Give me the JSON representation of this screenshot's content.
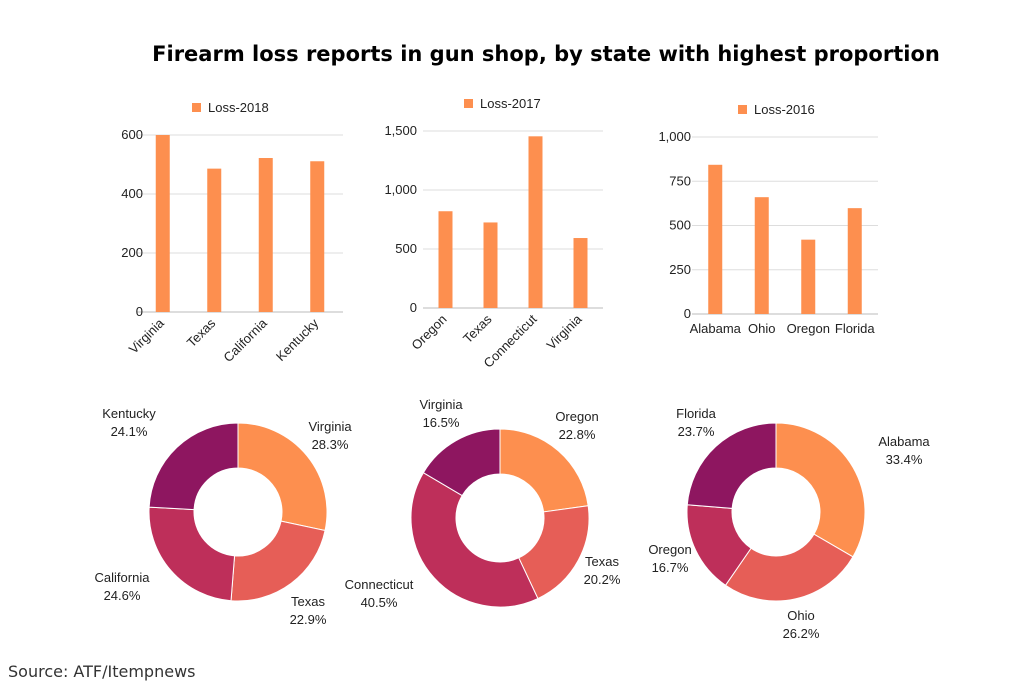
{
  "title": "Firearm loss reports in gun shop, by state with highest proportion",
  "source": "Source: ATF/Itempnews",
  "colors": {
    "bar": "#fd8f4f",
    "grid": "#dddddd",
    "donut": {
      "orange": "#fd8f4f",
      "coral": "#e65e57",
      "crimson": "#be2f5a",
      "purple": "#8e1660"
    }
  },
  "chart_data": [
    {
      "type": "bar",
      "legend": "Loss-2018",
      "categories": [
        "Virginia",
        "Texas",
        "California",
        "Kentucky"
      ],
      "values": [
        600,
        486,
        522,
        511
      ],
      "ylim": [
        0,
        600
      ],
      "yticks": [
        0,
        200,
        400,
        600
      ],
      "ytick_labels": [
        "0",
        "200",
        "400",
        "600"
      ],
      "rotate_labels": true
    },
    {
      "type": "bar",
      "legend": "Loss-2017",
      "categories": [
        "Oregon",
        "Texas",
        "Connecticut",
        "Virginia"
      ],
      "values": [
        820,
        725,
        1455,
        593
      ],
      "ylim": [
        0,
        1500
      ],
      "yticks": [
        0,
        500,
        1000,
        1500
      ],
      "ytick_labels": [
        "0",
        "500",
        "1,000",
        "1,500"
      ],
      "rotate_labels": true
    },
    {
      "type": "bar",
      "legend": "Loss-2016",
      "categories": [
        "Alabama",
        "Ohio",
        "Oregon",
        "Florida"
      ],
      "values": [
        843,
        660,
        420,
        598
      ],
      "ylim": [
        0,
        1000
      ],
      "yticks": [
        0,
        250,
        500,
        750,
        1000
      ],
      "ytick_labels": [
        "0",
        "250",
        "500",
        "750",
        "1,000"
      ],
      "rotate_labels": false
    },
    {
      "type": "pie",
      "slices": [
        {
          "label": "Virginia",
          "value": 28.3,
          "pct": "28.3%",
          "color": "orange"
        },
        {
          "label": "Texas",
          "value": 22.9,
          "pct": "22.9%",
          "color": "coral"
        },
        {
          "label": "California",
          "value": 24.6,
          "pct": "24.6%",
          "color": "crimson"
        },
        {
          "label": "Kentucky",
          "value": 24.1,
          "pct": "24.1%",
          "color": "purple"
        }
      ]
    },
    {
      "type": "pie",
      "slices": [
        {
          "label": "Oregon",
          "value": 22.8,
          "pct": "22.8%",
          "color": "orange"
        },
        {
          "label": "Texas",
          "value": 20.2,
          "pct": "20.2%",
          "color": "coral"
        },
        {
          "label": "Connecticut",
          "value": 40.5,
          "pct": "40.5%",
          "color": "crimson"
        },
        {
          "label": "Virginia",
          "value": 16.5,
          "pct": "16.5%",
          "color": "purple"
        }
      ]
    },
    {
      "type": "pie",
      "slices": [
        {
          "label": "Alabama",
          "value": 33.4,
          "pct": "33.4%",
          "color": "orange"
        },
        {
          "label": "Ohio",
          "value": 26.2,
          "pct": "26.2%",
          "color": "coral"
        },
        {
          "label": "Oregon",
          "value": 16.7,
          "pct": "16.7%",
          "color": "crimson"
        },
        {
          "label": "Florida",
          "value": 23.7,
          "pct": "23.7%",
          "color": "purple"
        }
      ]
    }
  ]
}
